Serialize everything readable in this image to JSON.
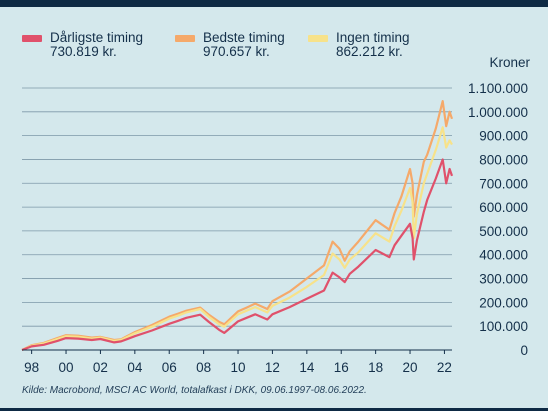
{
  "legend": [
    {
      "name": "Dårligste timing",
      "value": "730.819 kr.",
      "color": "#e0516b"
    },
    {
      "name": "Bedste timing",
      "value": "970.657 kr.",
      "color": "#f5a96a"
    },
    {
      "name": "Ingen timing",
      "value": "862.212 kr.",
      "color": "#f7e28a"
    }
  ],
  "source": "Kilde: Macrobond, MSCI AC World, totalafkast i DKK, 09.06.1997-08.06.2022.",
  "chart_data": {
    "type": "line",
    "ylabel": "Kroner",
    "ylim": [
      0,
      1100000
    ],
    "yticks": [
      {
        "value": 0,
        "label": "0"
      },
      {
        "value": 100000,
        "label": "100.000"
      },
      {
        "value": 200000,
        "label": "200.000"
      },
      {
        "value": 300000,
        "label": "300.000"
      },
      {
        "value": 400000,
        "label": "400.000"
      },
      {
        "value": 500000,
        "label": "500.000"
      },
      {
        "value": 600000,
        "label": "600.000"
      },
      {
        "value": 700000,
        "label": "700.000"
      },
      {
        "value": 800000,
        "label": "800.000"
      },
      {
        "value": 900000,
        "label": "900.000"
      },
      {
        "value": 1000000,
        "label": "1.000.000"
      },
      {
        "value": 1100000,
        "label": "1.100.000"
      }
    ],
    "xlim": [
      1997.44,
      2022.44
    ],
    "xticks": [
      {
        "value": 1998,
        "label": "98"
      },
      {
        "value": 2000,
        "label": "00"
      },
      {
        "value": 2002,
        "label": "02"
      },
      {
        "value": 2004,
        "label": "04"
      },
      {
        "value": 2006,
        "label": "06"
      },
      {
        "value": 2008,
        "label": "08"
      },
      {
        "value": 2010,
        "label": "10"
      },
      {
        "value": 2012,
        "label": "12"
      },
      {
        "value": 2014,
        "label": "14"
      },
      {
        "value": 2016,
        "label": "16"
      },
      {
        "value": 2018,
        "label": "18"
      },
      {
        "value": 2020,
        "label": "20"
      },
      {
        "value": 2022,
        "label": "22"
      }
    ],
    "grid": true,
    "legend_position": "top",
    "series": [
      {
        "name": "Bedste timing",
        "color": "#f5a96a",
        "x": [
          1997.44,
          1998.0,
          1998.7,
          1999.5,
          2000.0,
          2000.7,
          2001.5,
          2002.0,
          2002.8,
          2003.2,
          2004.0,
          2005.0,
          2006.0,
          2006.5,
          2007.0,
          2007.8,
          2008.3,
          2008.9,
          2009.2,
          2009.5,
          2010.0,
          2010.5,
          2011.0,
          2011.7,
          2012.0,
          2013.0,
          2014.0,
          2015.0,
          2015.5,
          2015.9,
          2016.2,
          2016.5,
          2017.0,
          2018.0,
          2018.8,
          2019.1,
          2019.5,
          2020.0,
          2020.15,
          2020.22,
          2020.4,
          2020.8,
          2021.0,
          2021.5,
          2021.9,
          2022.1,
          2022.3,
          2022.44
        ],
        "y": [
          0,
          20000,
          30000,
          50000,
          62000,
          60000,
          52000,
          55000,
          42000,
          45000,
          75000,
          105000,
          140000,
          152000,
          165000,
          178000,
          148000,
          118000,
          108000,
          128000,
          162000,
          178000,
          195000,
          172000,
          205000,
          245000,
          300000,
          355000,
          455000,
          425000,
          375000,
          415000,
          455000,
          545000,
          505000,
          575000,
          645000,
          760000,
          700000,
          560000,
          650000,
          790000,
          820000,
          930000,
          1045000,
          940000,
          1000000,
          970657
        ]
      },
      {
        "name": "Ingen timing",
        "color": "#f7e28a",
        "x": [
          1997.44,
          1998.0,
          1998.7,
          1999.5,
          2000.0,
          2000.7,
          2001.5,
          2002.0,
          2002.8,
          2003.2,
          2004.0,
          2005.0,
          2006.0,
          2006.5,
          2007.0,
          2007.8,
          2008.3,
          2008.9,
          2009.2,
          2009.5,
          2010.0,
          2010.5,
          2011.0,
          2011.7,
          2012.0,
          2013.0,
          2014.0,
          2015.0,
          2015.5,
          2015.9,
          2016.2,
          2016.5,
          2017.0,
          2018.0,
          2018.8,
          2019.1,
          2019.5,
          2020.0,
          2020.15,
          2020.22,
          2020.4,
          2020.8,
          2021.0,
          2021.5,
          2021.9,
          2022.1,
          2022.3,
          2022.44
        ],
        "y": [
          0,
          18000,
          27000,
          46000,
          58000,
          56000,
          48000,
          52000,
          38000,
          42000,
          70000,
          98000,
          132000,
          144000,
          158000,
          172000,
          140000,
          108000,
          98000,
          118000,
          150000,
          165000,
          180000,
          158000,
          185000,
          220000,
          265000,
          315000,
          405000,
          380000,
          345000,
          380000,
          410000,
          490000,
          455000,
          520000,
          585000,
          680000,
          620000,
          470000,
          570000,
          700000,
          740000,
          840000,
          935000,
          850000,
          880000,
          862212
        ]
      },
      {
        "name": "Dårligste timing",
        "color": "#e0516b",
        "x": [
          1997.44,
          1998.0,
          1998.7,
          1999.5,
          2000.0,
          2000.7,
          2001.5,
          2002.0,
          2002.8,
          2003.2,
          2004.0,
          2005.0,
          2006.0,
          2006.5,
          2007.0,
          2007.8,
          2008.3,
          2008.9,
          2009.2,
          2009.5,
          2010.0,
          2010.5,
          2011.0,
          2011.7,
          2012.0,
          2013.0,
          2014.0,
          2015.0,
          2015.5,
          2015.9,
          2016.2,
          2016.5,
          2017.0,
          2018.0,
          2018.8,
          2019.1,
          2019.5,
          2020.0,
          2020.15,
          2020.22,
          2020.4,
          2020.8,
          2021.0,
          2021.5,
          2021.9,
          2022.1,
          2022.3,
          2022.44
        ],
        "y": [
          0,
          15000,
          22000,
          38000,
          50000,
          48000,
          42000,
          46000,
          32000,
          36000,
          58000,
          82000,
          110000,
          122000,
          135000,
          148000,
          118000,
          85000,
          72000,
          90000,
          120000,
          135000,
          150000,
          128000,
          150000,
          180000,
          215000,
          250000,
          325000,
          305000,
          285000,
          320000,
          350000,
          420000,
          390000,
          440000,
          480000,
          530000,
          470000,
          380000,
          460000,
          580000,
          630000,
          720000,
          800000,
          700000,
          760000,
          730819
        ]
      }
    ]
  }
}
